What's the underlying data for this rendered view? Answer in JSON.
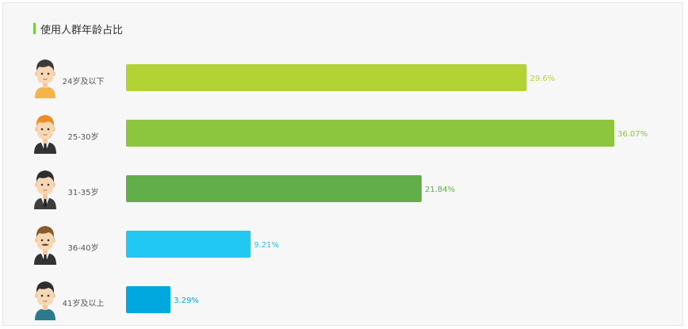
{
  "chart_data": {
    "type": "bar",
    "orientation": "horizontal",
    "title": "使用人群年龄占比",
    "categories": [
      "24岁及以下",
      "25-30岁",
      "31-35岁",
      "36-40岁",
      "41岁及以上"
    ],
    "values": [
      29.6,
      36.07,
      21.84,
      9.21,
      3.29
    ],
    "value_labels": [
      "29.6%",
      "36.07%",
      "21.84%",
      "9.21%",
      "3.29%"
    ],
    "unit": "%",
    "xlim": [
      0,
      36.07
    ],
    "grid": false,
    "legend": "none",
    "bar_colors": [
      "#b3d334",
      "#8cc63f",
      "#62ae48",
      "#22c8f2",
      "#00a8e0"
    ],
    "icons": [
      "young-man-orange-shirt-icon",
      "young-man-suit-icon",
      "man-suit-icon",
      "mustache-man-suit-icon",
      "older-man-blue-shirt-icon"
    ]
  }
}
